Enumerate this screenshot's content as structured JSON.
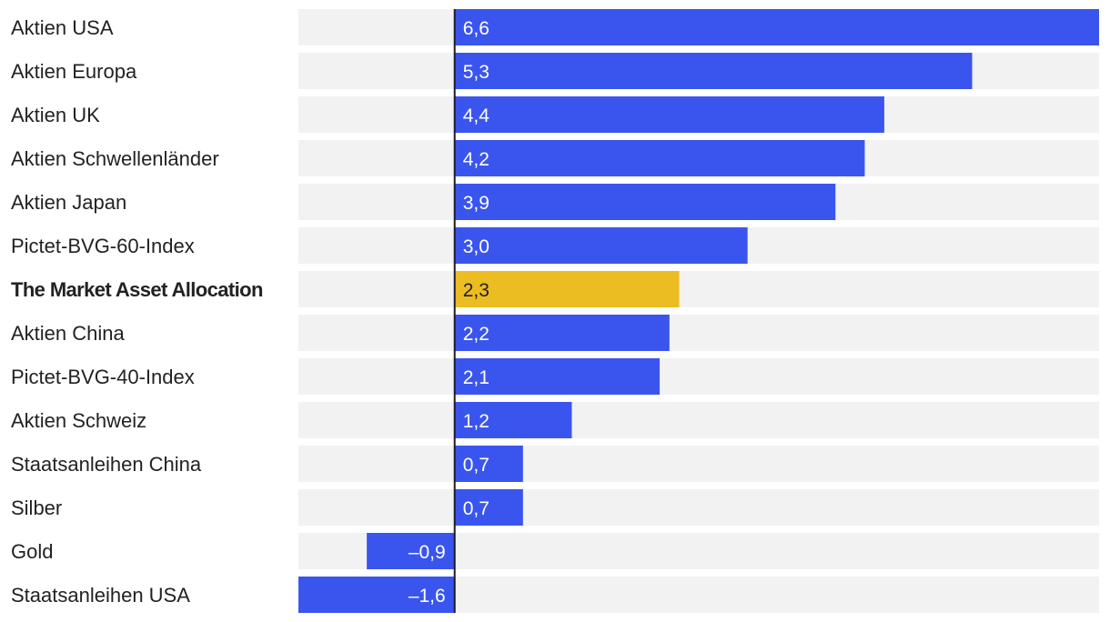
{
  "chart_data": {
    "type": "bar",
    "orientation": "horizontal",
    "title": "",
    "xlabel": "",
    "ylabel": "",
    "xlim": [
      -1.6,
      6.6
    ],
    "grid": false,
    "categories": [
      "Aktien USA",
      "Aktien Europa",
      "Aktien UK",
      "Aktien Schwellenländer",
      "Aktien Japan",
      "Pictet-BVG-60-Index",
      "The Market Asset Allocation",
      "Aktien China",
      "Pictet-BVG-40-Index",
      "Aktien Schweiz",
      "Staatsanleihen China",
      "Silber",
      "Gold",
      "Staatsanleihen USA"
    ],
    "values": [
      6.6,
      5.3,
      4.4,
      4.2,
      3.9,
      3.0,
      2.3,
      2.2,
      2.1,
      1.2,
      0.7,
      0.7,
      -0.9,
      -1.6
    ],
    "value_labels": [
      "6,6",
      "5,3",
      "4,4",
      "4,2",
      "3,9",
      "3,0",
      "2,3",
      "2,2",
      "2,1",
      "1,2",
      "0,7",
      "0,7",
      "–0,9",
      "–1,6"
    ],
    "highlight_category": "The Market Asset Allocation",
    "colors": {
      "bar": "#3a55ee",
      "highlight_bar": "#ebbd22",
      "track": "#f2f2f2",
      "zero_line": "#1c1c2e",
      "label_text": "#222222"
    }
  }
}
